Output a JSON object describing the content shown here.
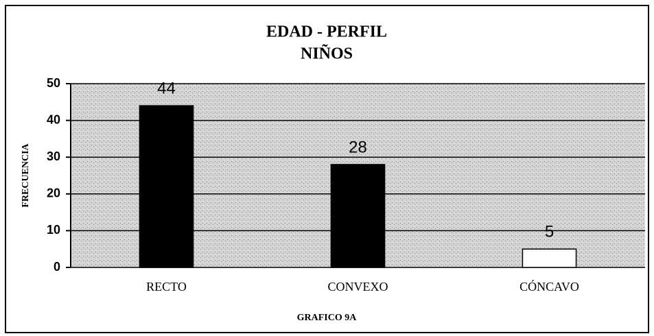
{
  "chart_data": {
    "type": "bar",
    "title": "EDAD - PERFIL",
    "subtitle": "NIÑOS",
    "categories": [
      "RECTO",
      "CONVEXO",
      "CÓNCAVO"
    ],
    "values": [
      44,
      28,
      5
    ],
    "colors": [
      "#000000",
      "#000000",
      "#ffffff"
    ],
    "xlabel": "GRAFICO 9A",
    "ylabel": "FRECUENCIA",
    "ylim": [
      0,
      50
    ],
    "yticks": [
      0,
      10,
      20,
      30,
      40,
      50
    ],
    "grid": true
  }
}
